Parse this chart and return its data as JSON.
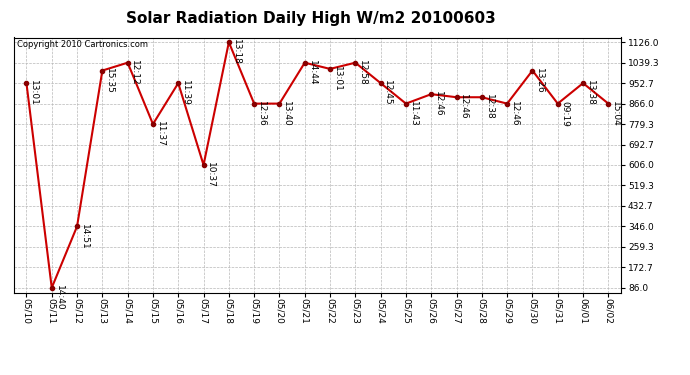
{
  "title": "Solar Radiation Daily High W/m2 20100603",
  "copyright": "Copyright 2010 Cartronics.com",
  "dates": [
    "05/10",
    "05/11",
    "05/12",
    "05/13",
    "05/14",
    "05/15",
    "05/16",
    "05/17",
    "05/18",
    "05/19",
    "05/20",
    "05/21",
    "05/22",
    "05/23",
    "05/24",
    "05/25",
    "05/26",
    "05/27",
    "05/28",
    "05/29",
    "05/30",
    "05/31",
    "06/01",
    "06/02"
  ],
  "values": [
    952.7,
    86.0,
    346.0,
    1006.0,
    1039.3,
    779.3,
    952.7,
    606.0,
    1126.0,
    866.0,
    866.0,
    1039.3,
    1013.0,
    1039.3,
    952.7,
    866.0,
    906.0,
    893.0,
    893.0,
    866.0,
    1006.0,
    866.0,
    952.7,
    866.0
  ],
  "times": [
    "13:01",
    "14:40",
    "14:51",
    "15:35",
    "12:12",
    "11:37",
    "11:39",
    "10:37",
    "13:18",
    "12:36",
    "13:40",
    "14:44",
    "13:01",
    "12:58",
    "12:45",
    "11:43",
    "12:46",
    "12:46",
    "12:38",
    "12:46",
    "13:26",
    "09:19",
    "13:38",
    "15:04"
  ],
  "ymin": 86.0,
  "ymax": 1126.0,
  "yticks": [
    86.0,
    172.7,
    259.3,
    346.0,
    432.7,
    519.3,
    606.0,
    692.7,
    779.3,
    866.0,
    952.7,
    1039.3,
    1126.0
  ],
  "line_color": "#cc0000",
  "marker_color": "#880000",
  "bg_color": "#ffffff",
  "grid_color": "#b8b8b8",
  "title_fontsize": 11,
  "label_fontsize": 6.5,
  "tick_fontsize": 6.5,
  "copyright_fontsize": 6
}
